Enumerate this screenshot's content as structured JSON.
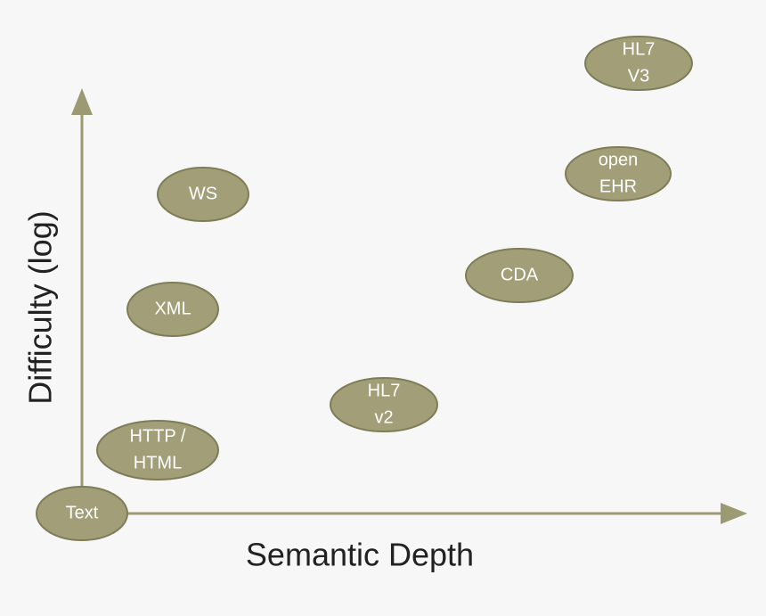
{
  "axes": {
    "x_label": "Semantic Depth",
    "y_label": "Difficulty (log)"
  },
  "nodes": [
    {
      "lines": [
        "HL7",
        "V3"
      ]
    },
    {
      "lines": [
        "open",
        "EHR"
      ]
    },
    {
      "lines": [
        "WS"
      ]
    },
    {
      "lines": [
        "CDA"
      ]
    },
    {
      "lines": [
        "XML"
      ]
    },
    {
      "lines": [
        "HL7",
        "v2"
      ]
    },
    {
      "lines": [
        "HTTP /",
        "HTML"
      ]
    },
    {
      "lines": [
        "Text"
      ]
    }
  ]
}
